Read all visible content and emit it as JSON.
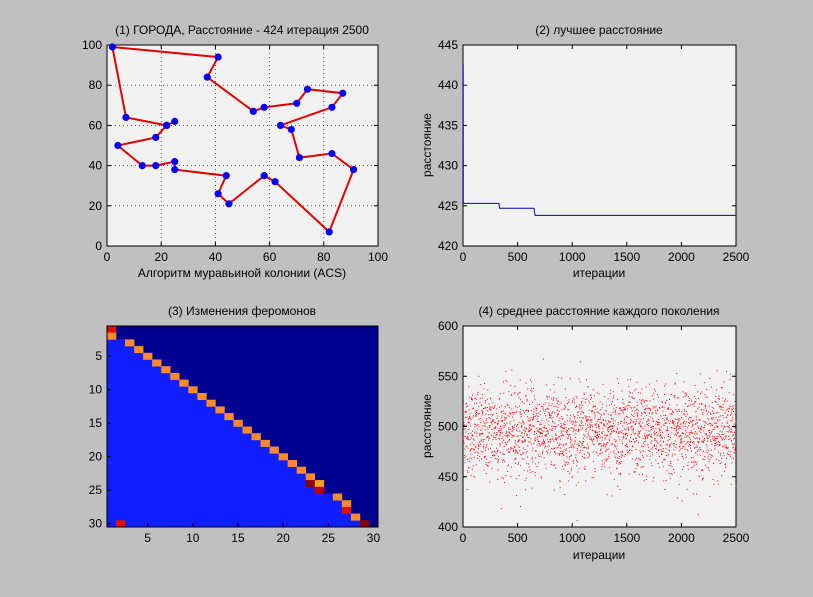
{
  "figure": {
    "background": "#c0c0c0"
  },
  "chart_data": [
    {
      "id": "tour",
      "type": "line",
      "title": "(1) ГОРОДА, Расстояние - 424 итерация 2500",
      "xlabel": "Алгоритм муравьиной колонии (ACS)",
      "ylabel": "",
      "xlim": [
        0,
        100
      ],
      "ylim": [
        0,
        100
      ],
      "xticks": [
        0,
        20,
        40,
        60,
        80,
        100
      ],
      "yticks": [
        0,
        20,
        40,
        60,
        80,
        100
      ],
      "grid": true,
      "line_color": "#e00000",
      "marker_color": "#0000ff",
      "x": [
        2,
        41,
        37,
        54,
        58,
        70,
        74,
        87,
        83,
        64,
        68,
        71,
        83,
        91,
        82,
        62,
        58,
        45,
        41,
        44,
        25,
        25,
        18,
        13,
        4,
        18,
        22,
        25,
        22,
        7,
        2
      ],
      "y": [
        99,
        94,
        84,
        67,
        69,
        71,
        78,
        76,
        69,
        60,
        58,
        44,
        46,
        38,
        7,
        32,
        35,
        21,
        26,
        35,
        38,
        42,
        40,
        40,
        50,
        54,
        60,
        62,
        60,
        64,
        99
      ]
    },
    {
      "id": "best",
      "type": "line",
      "title": "(2) лучшее расстояние",
      "xlabel": "итерации",
      "ylabel": "расстояние",
      "xlim": [
        0,
        2500
      ],
      "ylim": [
        420,
        445
      ],
      "xticks": [
        0,
        500,
        1000,
        1500,
        2000,
        2500
      ],
      "yticks": [
        420,
        425,
        430,
        435,
        440,
        445
      ],
      "line_color": "#0000cc",
      "x": [
        0,
        2,
        3,
        330,
        335,
        650,
        660,
        2500
      ],
      "y": [
        442.5,
        442.5,
        425.3,
        425.3,
        424.7,
        424.7,
        423.8,
        423.8
      ]
    },
    {
      "id": "pheromone",
      "type": "heatmap",
      "title": "(3) Изменения феромонов",
      "xlim": [
        0.5,
        30.5
      ],
      "ylim": [
        0.5,
        30.5
      ],
      "xticks": [
        5,
        10,
        15,
        20,
        25,
        30
      ],
      "yticks": [
        5,
        10,
        15,
        20,
        25,
        30
      ],
      "background_color": "#00008f",
      "lower_color": "#0f1fff",
      "cells": [
        {
          "row": 1,
          "col": 1,
          "color": "#e01000"
        },
        {
          "row": 2,
          "col": 1,
          "color": "#ff8a2a"
        },
        {
          "row": 3,
          "col": 3,
          "color": "#ff8a2a"
        },
        {
          "row": 4,
          "col": 4,
          "color": "#ff8a2a"
        },
        {
          "row": 5,
          "col": 5,
          "color": "#ff8a2a"
        },
        {
          "row": 6,
          "col": 6,
          "color": "#ff8a2a"
        },
        {
          "row": 7,
          "col": 7,
          "color": "#ff8a2a"
        },
        {
          "row": 8,
          "col": 8,
          "color": "#ff8a2a"
        },
        {
          "row": 9,
          "col": 9,
          "color": "#ff8a2a"
        },
        {
          "row": 10,
          "col": 10,
          "color": "#ff8a2a"
        },
        {
          "row": 11,
          "col": 11,
          "color": "#ff8a2a"
        },
        {
          "row": 12,
          "col": 12,
          "color": "#ff8a2a"
        },
        {
          "row": 13,
          "col": 13,
          "color": "#ff8a2a"
        },
        {
          "row": 14,
          "col": 14,
          "color": "#ff8a2a"
        },
        {
          "row": 15,
          "col": 15,
          "color": "#ff8a2a"
        },
        {
          "row": 16,
          "col": 16,
          "color": "#ff8a2a"
        },
        {
          "row": 17,
          "col": 17,
          "color": "#ff8a2a"
        },
        {
          "row": 18,
          "col": 18,
          "color": "#ff8a2a"
        },
        {
          "row": 19,
          "col": 19,
          "color": "#ff8a2a"
        },
        {
          "row": 20,
          "col": 20,
          "color": "#ff8a2a"
        },
        {
          "row": 21,
          "col": 21,
          "color": "#ff8a2a"
        },
        {
          "row": 22,
          "col": 22,
          "color": "#ff8a2a"
        },
        {
          "row": 23,
          "col": 23,
          "color": "#ff8a2a"
        },
        {
          "row": 24,
          "col": 23,
          "color": "#8a0000"
        },
        {
          "row": 24,
          "col": 24,
          "color": "#ffa018"
        },
        {
          "row": 25,
          "col": 24,
          "color": "#c00000"
        },
        {
          "row": 26,
          "col": 26,
          "color": "#ff8a2a"
        },
        {
          "row": 27,
          "col": 27,
          "color": "#ff8a2a"
        },
        {
          "row": 28,
          "col": 27,
          "color": "#e01000"
        },
        {
          "row": 29,
          "col": 28,
          "color": "#ff8a2a"
        },
        {
          "row": 30,
          "col": 29,
          "color": "#8a0000"
        },
        {
          "row": 30,
          "col": 2,
          "color": "#e01000"
        }
      ]
    },
    {
      "id": "average",
      "type": "scatter",
      "title": "(4) среднее расстояние каждого поколения",
      "xlabel": "итерации",
      "ylabel": "расстояние",
      "xlim": [
        0,
        2500
      ],
      "ylim": [
        400,
        600
      ],
      "xticks": [
        0,
        500,
        1000,
        1500,
        2000,
        2500
      ],
      "yticks": [
        400,
        450,
        500,
        550,
        600
      ],
      "point_color": "#ff0000",
      "points_n": 2500,
      "mean": 495,
      "spread": 22
    }
  ]
}
